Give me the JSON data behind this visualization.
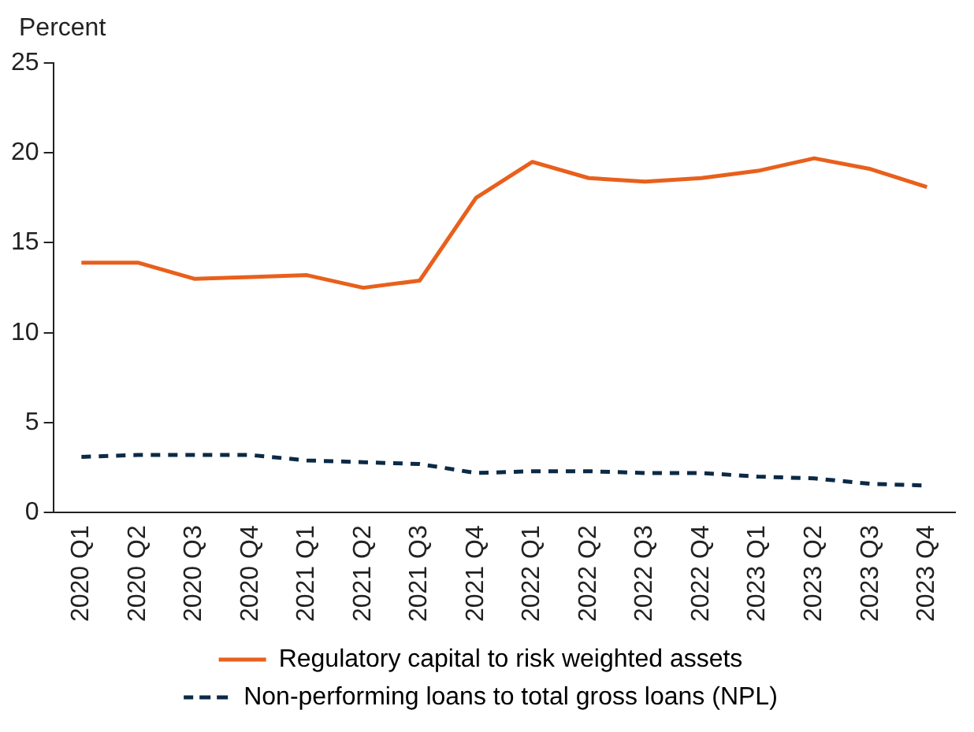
{
  "chart_data": {
    "type": "line",
    "ylabel": "Percent",
    "categories": [
      "2020 Q1",
      "2020 Q2",
      "2020 Q3",
      "2020 Q4",
      "2021 Q1",
      "2021 Q2",
      "2021 Q3",
      "2021 Q4",
      "2022 Q1",
      "2022 Q2",
      "2022 Q3",
      "2022 Q4",
      "2023 Q1",
      "2023 Q2",
      "2023 Q3",
      "2023 Q4"
    ],
    "series": [
      {
        "name": "Regulatory capital to risk weighted assets",
        "color": "#e8601c",
        "line_style": "solid",
        "values": [
          13.9,
          13.9,
          13.0,
          13.1,
          13.2,
          12.5,
          12.9,
          17.5,
          19.5,
          18.6,
          18.4,
          18.6,
          19.0,
          19.7,
          19.1,
          18.1
        ]
      },
      {
        "name": "Non-performing loans to total gross loans (NPL)",
        "color": "#0b2a45",
        "line_style": "dashed",
        "values": [
          3.1,
          3.2,
          3.2,
          3.2,
          2.9,
          2.8,
          2.7,
          2.2,
          2.3,
          2.3,
          2.2,
          2.2,
          2.0,
          1.9,
          1.6,
          1.5
        ]
      }
    ],
    "ylim": [
      0,
      25
    ],
    "yticks": [
      0,
      5,
      10,
      15,
      20,
      25
    ],
    "grid": false,
    "legend": "bottom",
    "marker": "none"
  }
}
